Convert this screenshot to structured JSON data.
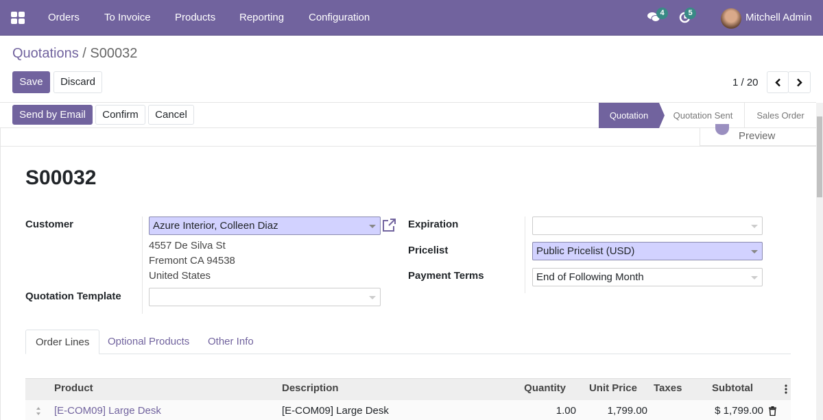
{
  "navbar": {
    "menu": [
      "Orders",
      "To Invoice",
      "Products",
      "Reporting",
      "Configuration"
    ],
    "messages_count": "4",
    "activities_count": "5",
    "user": "Mitchell Admin"
  },
  "breadcrumb": {
    "parent": "Quotations",
    "separator": "/",
    "current": "S00032"
  },
  "controls": {
    "save": "Save",
    "discard": "Discard",
    "pager": "1 / 20"
  },
  "actions": {
    "send_email": "Send by Email",
    "confirm": "Confirm",
    "cancel": "Cancel"
  },
  "statusbar": {
    "stages": [
      "Quotation",
      "Quotation Sent",
      "Sales Order"
    ],
    "active": "Quotation"
  },
  "button_box": {
    "preview": "Preview"
  },
  "form": {
    "title": "S00032",
    "customer_label": "Customer",
    "customer": "Azure Interior, Colleen Diaz",
    "address": [
      "4557 De Silva St",
      "Fremont CA 94538",
      "United States"
    ],
    "template_label": "Quotation Template",
    "template": "",
    "expiration_label": "Expiration",
    "expiration": "",
    "pricelist_label": "Pricelist",
    "pricelist": "Public Pricelist (USD)",
    "payment_terms_label": "Payment Terms",
    "payment_terms": "End of Following Month"
  },
  "tabs": [
    "Order Lines",
    "Optional Products",
    "Other Info"
  ],
  "table": {
    "headers": [
      "Product",
      "Description",
      "Quantity",
      "Unit Price",
      "Taxes",
      "Subtotal"
    ],
    "rows": [
      {
        "product": "[E-COM09] Large Desk",
        "description": "[E-COM09] Large Desk",
        "quantity": "1.00",
        "unit_price": "1,799.00",
        "taxes": "",
        "subtotal": "$ 1,799.00"
      }
    ]
  },
  "colors": {
    "brand": "#71639e",
    "badge": "#3a8a86",
    "required_field": "#d2d2ff"
  }
}
